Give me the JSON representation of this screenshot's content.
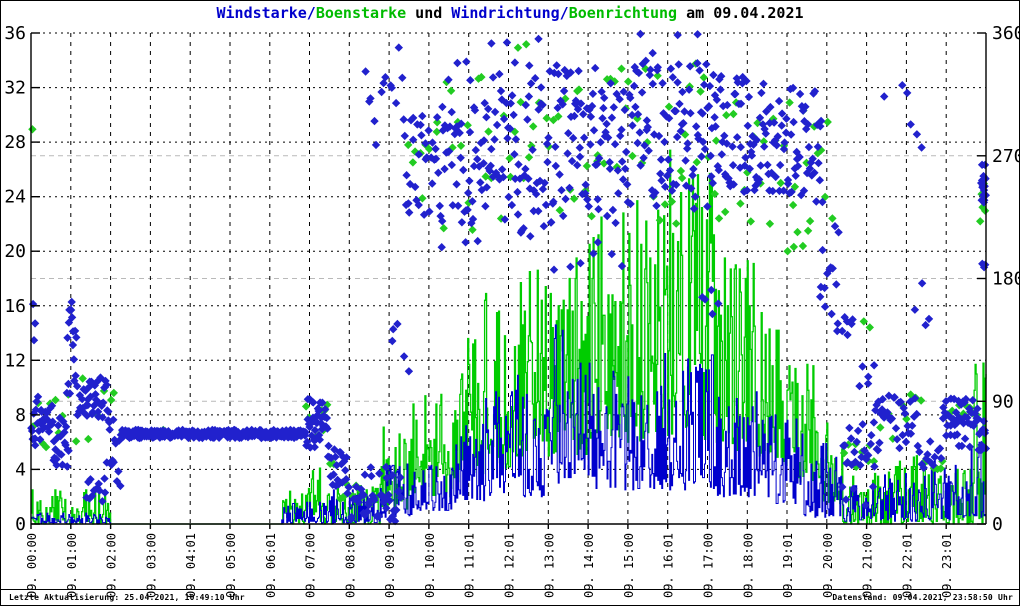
{
  "title": {
    "part1": "Windstarke",
    "slash1": "/",
    "part2": "Boenstarke",
    "mid": " und ",
    "part3": "Windrichtung",
    "slash2": "/",
    "part4": "Boenrichtung",
    "suffix": " am 09.04.2021"
  },
  "footer": {
    "left": "Letzte Aktualisierung: 25.04.2021, 10:49:10 Uhr",
    "right": "Datenstand: 09.04.2021, 23:58:50 Uhr"
  },
  "colors": {
    "blue_line": "#0000cd",
    "blue_point": "#2121cd",
    "green_line": "#00cc00",
    "green_point": "#22cc22",
    "title_blue": "#0000cc",
    "title_green": "#00bb00",
    "grid_major": "#000000",
    "grid_minor": "#b9b9b9",
    "background": "#ffffff"
  },
  "chart_data": {
    "type": "mixed",
    "title": "Windstarke/Boenstarke und Windrichtung/Boenrichtung am 09.04.2021",
    "grid": true,
    "x_axis": {
      "hours_range": [
        0,
        24
      ],
      "tick_hours": [
        0,
        1,
        2,
        3,
        4,
        5,
        6,
        7,
        8,
        9,
        10,
        11,
        12,
        13,
        14,
        15,
        16,
        17,
        18,
        19,
        20,
        21,
        22,
        23
      ],
      "tick_labels": [
        "09. 00:00",
        "09. 01:00",
        "09. 02:00",
        "09. 03:00",
        "09. 04:01",
        "09. 05:00",
        "09. 06:01",
        "09. 07:00",
        "09. 08:00",
        "09. 09:01",
        "09. 10:00",
        "09. 11:01",
        "09. 12:01",
        "09. 13:00",
        "09. 14:00",
        "09. 15:00",
        "09. 16:01",
        "09. 17:00",
        "09. 18:00",
        "09. 19:01",
        "09. 20:00",
        "09. 21:00",
        "09. 22:01",
        "09. 23:01"
      ]
    },
    "left_axis": {
      "range": [
        0,
        36
      ],
      "ticks": [
        0,
        4,
        8,
        12,
        16,
        20,
        24,
        28,
        32,
        36
      ],
      "used_by": "Windstarke/Boenstarke"
    },
    "right_axis": {
      "range": [
        0,
        360
      ],
      "ticks": [
        0,
        90,
        180,
        270,
        360
      ],
      "minor_gridlines": [
        90,
        180,
        270
      ],
      "used_by": "Windrichtung/Boenrichtung"
    },
    "series": [
      {
        "name": "Boenstarke",
        "style": "step",
        "axis": "left",
        "color": "#00cc00",
        "segments": [
          [
            0.0,
            0.95,
            0,
            2.5
          ],
          [
            0.95,
            1.3,
            0,
            1.3
          ],
          [
            1.3,
            2.0,
            0,
            2.5
          ],
          [
            2.0,
            6.28,
            0,
            0
          ],
          [
            6.28,
            7.0,
            0,
            2.6
          ],
          [
            7.0,
            7.3,
            0,
            4.4
          ],
          [
            7.3,
            8.8,
            0,
            3
          ],
          [
            8.8,
            9.6,
            1,
            7.5
          ],
          [
            9.6,
            10.6,
            2,
            10
          ],
          [
            10.6,
            11.4,
            3,
            14
          ],
          [
            11.4,
            12.2,
            4,
            17
          ],
          [
            12.2,
            13.2,
            5,
            19
          ],
          [
            13.2,
            14.2,
            5,
            21
          ],
          [
            14.2,
            15.2,
            6,
            23
          ],
          [
            15.2,
            16.0,
            6,
            24
          ],
          [
            16.0,
            16.4,
            6,
            30
          ],
          [
            16.4,
            17.4,
            6,
            26
          ],
          [
            17.4,
            18.4,
            5,
            20
          ],
          [
            18.4,
            19.2,
            4,
            15
          ],
          [
            19.2,
            19.8,
            3,
            12
          ],
          [
            19.8,
            20.4,
            1.5,
            8
          ],
          [
            20.4,
            21.6,
            0,
            4
          ],
          [
            21.6,
            22.6,
            0,
            5
          ],
          [
            22.6,
            23.7,
            0,
            4
          ],
          [
            23.7,
            24.0,
            0,
            13
          ]
        ]
      },
      {
        "name": "Windstarke",
        "style": "step",
        "axis": "left",
        "color": "#0000cd",
        "segments": [
          [
            0.0,
            2.0,
            0,
            0.8
          ],
          [
            2.0,
            6.3,
            0,
            0
          ],
          [
            6.3,
            7.5,
            0,
            1.6
          ],
          [
            7.5,
            8.8,
            0,
            2.6
          ],
          [
            8.8,
            9.6,
            0.5,
            4.5
          ],
          [
            9.6,
            10.6,
            1,
            6
          ],
          [
            10.6,
            11.4,
            1.5,
            7.5
          ],
          [
            11.4,
            13.0,
            2,
            11
          ],
          [
            13.0,
            13.5,
            3,
            15.5
          ],
          [
            13.5,
            15.0,
            2.5,
            12
          ],
          [
            15.0,
            17.2,
            2.5,
            12.5
          ],
          [
            17.2,
            18.4,
            2,
            10
          ],
          [
            18.4,
            19.4,
            1.5,
            8
          ],
          [
            19.4,
            20.4,
            0.5,
            6
          ],
          [
            20.4,
            21.4,
            0.2,
            3
          ],
          [
            21.4,
            22.4,
            0.2,
            4
          ],
          [
            22.4,
            23.4,
            0.3,
            5
          ],
          [
            23.4,
            24.0,
            0.5,
            6.5
          ]
        ]
      },
      {
        "name": "Boenrichtung",
        "style": "scatter",
        "axis": "right",
        "color": "#22cc22",
        "segments": [
          [
            0.02,
            0.06,
            288,
            296,
            1
          ],
          [
            0.0,
            0.9,
            55,
            95,
            8
          ],
          [
            0.9,
            2.2,
            60,
            110,
            9
          ],
          [
            2.3,
            6.9,
            63,
            70,
            10
          ],
          [
            6.9,
            7.5,
            55,
            90,
            9
          ],
          [
            7.5,
            8.4,
            12,
            55,
            9
          ],
          [
            9.4,
            10.3,
            230,
            300,
            9
          ],
          [
            10.3,
            13.0,
            215,
            330,
            28
          ],
          [
            12.2,
            12.6,
            345,
            355,
            2
          ],
          [
            13.0,
            17.0,
            220,
            340,
            42
          ],
          [
            17.0,
            20.2,
            210,
            320,
            34
          ],
          [
            19.0,
            19.6,
            200,
            215,
            4
          ],
          [
            20.4,
            21.4,
            40,
            80,
            9
          ],
          [
            20.9,
            21.1,
            140,
            150,
            2
          ],
          [
            21.4,
            22.4,
            55,
            95,
            8
          ],
          [
            22.4,
            23.0,
            40,
            55,
            6
          ],
          [
            23.0,
            23.8,
            75,
            92,
            9
          ],
          [
            23.85,
            24.0,
            215,
            255,
            5
          ]
        ]
      },
      {
        "name": "Windrichtung",
        "style": "scatter",
        "axis": "right",
        "color": "#2121cd",
        "segments": [
          [
            0.0,
            0.55,
            55,
            95,
            32
          ],
          [
            0.04,
            0.12,
            126,
            168,
            3
          ],
          [
            0.55,
            0.95,
            42,
            78,
            22
          ],
          [
            0.9,
            1.15,
            95,
            165,
            16
          ],
          [
            1.15,
            1.95,
            78,
            108,
            40
          ],
          [
            1.35,
            1.9,
            16,
            34,
            12
          ],
          [
            1.9,
            2.25,
            22,
            78,
            14
          ],
          [
            2.25,
            6.9,
            63,
            69,
            272
          ],
          [
            6.9,
            7.45,
            55,
            92,
            38
          ],
          [
            7.45,
            7.95,
            28,
            58,
            22
          ],
          [
            7.95,
            9.3,
            2,
            28,
            40
          ],
          [
            8.3,
            9.3,
            30,
            46,
            8
          ],
          [
            8.35,
            9.35,
            268,
            350,
            13
          ],
          [
            9.0,
            9.5,
            105,
            150,
            5
          ],
          [
            9.35,
            10.2,
            225,
            300,
            30
          ],
          [
            10.2,
            11.5,
            200,
            305,
            52
          ],
          [
            10.2,
            11.5,
            305,
            340,
            7
          ],
          [
            11.5,
            13.0,
            210,
            330,
            66
          ],
          [
            11.5,
            13.0,
            335,
            360,
            5
          ],
          [
            13.0,
            15.0,
            220,
            340,
            88
          ],
          [
            13.0,
            15.0,
            182,
            215,
            7
          ],
          [
            15.0,
            17.0,
            230,
            340,
            88
          ],
          [
            15.2,
            16.8,
            345,
            360,
            4
          ],
          [
            16.8,
            17.3,
            148,
            172,
            5
          ],
          [
            17.0,
            18.6,
            240,
            330,
            78
          ],
          [
            18.6,
            19.9,
            235,
            320,
            58
          ],
          [
            19.8,
            20.3,
            150,
            230,
            13
          ],
          [
            20.2,
            20.7,
            130,
            165,
            8
          ],
          [
            20.3,
            21.2,
            12,
            30,
            5
          ],
          [
            20.4,
            21.3,
            38,
            80,
            24
          ],
          [
            20.8,
            21.2,
            100,
            120,
            5
          ],
          [
            21.2,
            22.3,
            55,
            95,
            34
          ],
          [
            21.4,
            22.2,
            310,
            340,
            3
          ],
          [
            22.1,
            22.4,
            250,
            308,
            3
          ],
          [
            22.2,
            22.6,
            140,
            180,
            4
          ],
          [
            22.3,
            22.9,
            40,
            62,
            12
          ],
          [
            22.9,
            23.8,
            72,
            92,
            38
          ],
          [
            23.0,
            23.6,
            55,
            70,
            8
          ],
          [
            23.8,
            24.0,
            52,
            78,
            14
          ],
          [
            23.88,
            24.0,
            235,
            268,
            16
          ],
          [
            23.9,
            24.0,
            185,
            200,
            3
          ]
        ]
      }
    ]
  }
}
